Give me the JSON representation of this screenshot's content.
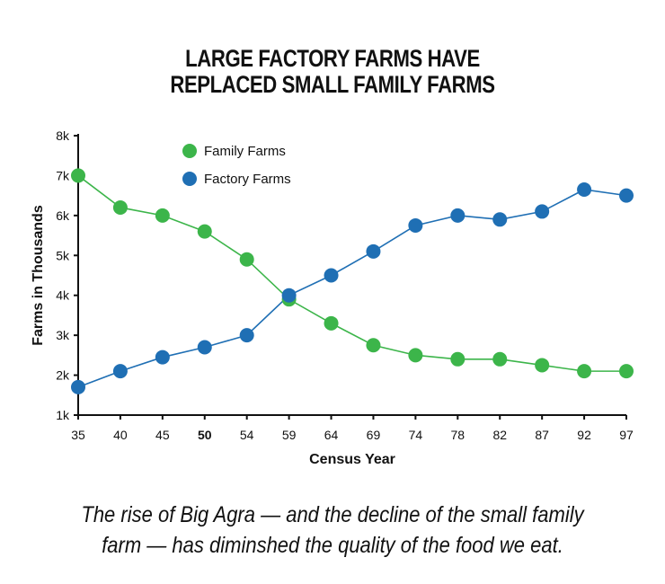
{
  "title_line1": "LARGE FACTORY FARMS HAVE",
  "title_line2": "REPLACED SMALL FAMILY FARMS",
  "caption_line1": "The rise of Big Agra — and the decline of the small family",
  "caption_line2": "farm — has diminshed the quality of the food we eat.",
  "colors": {
    "family": "#3cb54a",
    "factory": "#1f6fb4",
    "axis": "#111111"
  },
  "chart_data": {
    "type": "line",
    "xlabel": "Census Year",
    "ylabel": "Farms in Thousands",
    "categories": [
      "35",
      "40",
      "45",
      "50",
      "54",
      "59",
      "64",
      "69",
      "74",
      "78",
      "82",
      "87",
      "92",
      "97"
    ],
    "ylim": [
      1,
      8
    ],
    "yticks": [
      "1k",
      "2k",
      "3k",
      "4k",
      "5k",
      "6k",
      "7k",
      "8k"
    ],
    "legend_position": "top-left",
    "grid": false,
    "series": [
      {
        "name": "Family Farms",
        "color": "#3cb54a",
        "values": [
          7.0,
          6.2,
          6.0,
          5.6,
          4.9,
          3.9,
          3.3,
          2.75,
          2.5,
          2.4,
          2.4,
          2.25,
          2.1,
          2.1
        ]
      },
      {
        "name": "Factory Farms",
        "color": "#1f6fb4",
        "values": [
          1.7,
          2.1,
          2.45,
          2.7,
          3.0,
          4.0,
          4.5,
          5.1,
          5.75,
          6.0,
          5.9,
          6.1,
          6.65,
          6.5
        ]
      }
    ]
  }
}
